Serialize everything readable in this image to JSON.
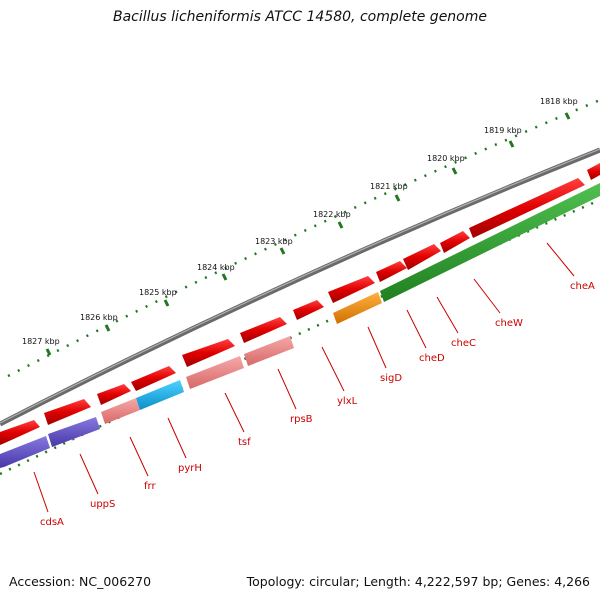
{
  "title": "Bacillus licheniformis ATCC 14580, complete genome",
  "footer": {
    "accession": "Accession: NC_006270",
    "summary": "Topology: circular; Length: 4,222,597 bp; Genes: 4,266"
  },
  "colors": {
    "backbone": "#7a7a7a",
    "cds_forward": "#e00000",
    "tick": "#227722",
    "label": "#cc0000",
    "gene_purple": "#6050c0",
    "gene_pink": "#e88080",
    "gene_cyan": "#10b0e0",
    "gene_orange": "#f09010",
    "gene_green": "#30a030"
  },
  "kbp_labels": [
    "1818 kbp",
    "1819 kbp",
    "1820 kbp",
    "1821 kbp",
    "1822 kbp",
    "1823 kbp",
    "1824 kbp",
    "1825 kbp",
    "1826 kbp",
    "1827 kbp"
  ],
  "gene_labels": [
    "cdsA",
    "uppS",
    "frr",
    "pyrH",
    "tsf",
    "rpsB",
    "ylxL",
    "sigD",
    "cheD",
    "cheC",
    "cheW",
    "cheA"
  ]
}
